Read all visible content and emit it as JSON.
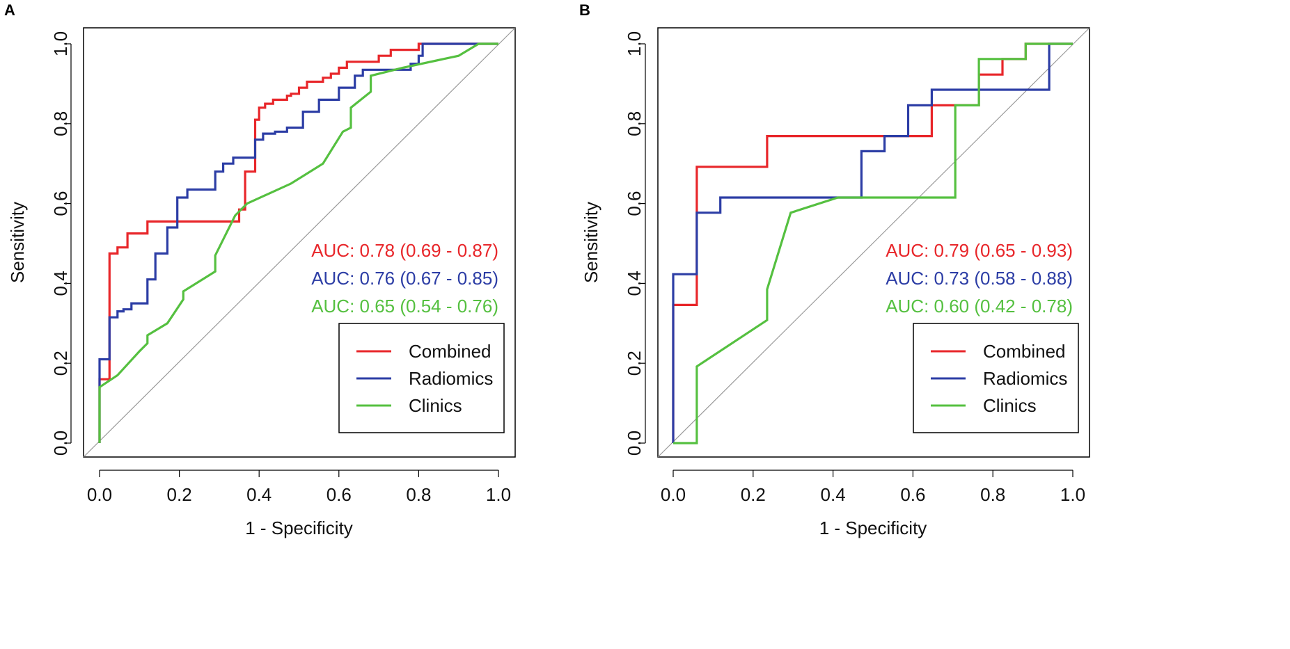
{
  "chart_data": [
    {
      "type": "line",
      "panel_label": "A",
      "xlabel": "1 - Specificity",
      "ylabel": "Sensitivity",
      "xlim": [
        0,
        1
      ],
      "ylim": [
        0,
        1
      ],
      "xticks": [
        "0.0",
        "0.2",
        "0.4",
        "0.6",
        "0.8",
        "1.0"
      ],
      "yticks": [
        "0.0",
        "0.2",
        "0.4",
        "0.6",
        "0.8",
        "1.0"
      ],
      "reference_line": "diagonal",
      "legend_position": "bottom-right",
      "series": [
        {
          "name": "Combined",
          "color": "#e8262a",
          "auc_text": "AUC: 0.78 (0.69 - 0.87)",
          "x": [
            0,
            0,
            0.025,
            0.025,
            0.045,
            0.045,
            0.07,
            0.07,
            0.12,
            0.12,
            0.35,
            0.35,
            0.365,
            0.365,
            0.39,
            0.39,
            0.4,
            0.4,
            0.415,
            0.415,
            0.435,
            0.435,
            0.47,
            0.47,
            0.48,
            0.48,
            0.5,
            0.5,
            0.52,
            0.52,
            0.56,
            0.56,
            0.58,
            0.58,
            0.6,
            0.6,
            0.62,
            0.62,
            0.7,
            0.7,
            0.73,
            0.73,
            0.8,
            0.8,
            1.0
          ],
          "y": [
            0,
            0.16,
            0.16,
            0.475,
            0.475,
            0.49,
            0.49,
            0.525,
            0.525,
            0.555,
            0.555,
            0.585,
            0.585,
            0.68,
            0.68,
            0.81,
            0.81,
            0.84,
            0.84,
            0.85,
            0.85,
            0.86,
            0.86,
            0.87,
            0.87,
            0.875,
            0.875,
            0.89,
            0.89,
            0.905,
            0.905,
            0.915,
            0.915,
            0.925,
            0.925,
            0.94,
            0.94,
            0.955,
            0.955,
            0.97,
            0.97,
            0.985,
            0.985,
            1.0,
            1.0
          ]
        },
        {
          "name": "Radiomics",
          "color": "#2c3da5",
          "auc_text": "AUC: 0.76 (0.67 - 0.85)",
          "x": [
            0,
            0,
            0.025,
            0.025,
            0.045,
            0.045,
            0.06,
            0.06,
            0.08,
            0.08,
            0.12,
            0.12,
            0.14,
            0.14,
            0.17,
            0.17,
            0.195,
            0.195,
            0.22,
            0.22,
            0.29,
            0.29,
            0.31,
            0.31,
            0.335,
            0.335,
            0.39,
            0.39,
            0.41,
            0.41,
            0.44,
            0.44,
            0.47,
            0.47,
            0.51,
            0.51,
            0.55,
            0.55,
            0.6,
            0.6,
            0.64,
            0.64,
            0.66,
            0.66,
            0.78,
            0.78,
            0.8,
            0.8,
            0.81,
            0.81,
            1.0
          ],
          "y": [
            0,
            0.21,
            0.21,
            0.315,
            0.315,
            0.33,
            0.33,
            0.335,
            0.335,
            0.35,
            0.35,
            0.41,
            0.41,
            0.475,
            0.475,
            0.54,
            0.54,
            0.615,
            0.615,
            0.635,
            0.635,
            0.68,
            0.68,
            0.7,
            0.7,
            0.715,
            0.715,
            0.76,
            0.76,
            0.775,
            0.775,
            0.78,
            0.78,
            0.79,
            0.79,
            0.83,
            0.83,
            0.86,
            0.86,
            0.89,
            0.89,
            0.92,
            0.92,
            0.935,
            0.935,
            0.95,
            0.95,
            0.97,
            0.97,
            1.0,
            1.0
          ]
        },
        {
          "name": "Clinics",
          "color": "#55c040",
          "auc_text": "AUC: 0.65 (0.54 - 0.76)",
          "x": [
            0,
            0,
            0.045,
            0.1,
            0.12,
            0.12,
            0.17,
            0.21,
            0.21,
            0.29,
            0.29,
            0.34,
            0.37,
            0.48,
            0.56,
            0.61,
            0.63,
            0.63,
            0.68,
            0.68,
            0.76,
            0.9,
            0.95,
            1.0
          ],
          "y": [
            0,
            0.14,
            0.17,
            0.23,
            0.25,
            0.27,
            0.3,
            0.36,
            0.38,
            0.43,
            0.47,
            0.57,
            0.6,
            0.65,
            0.7,
            0.78,
            0.79,
            0.84,
            0.88,
            0.92,
            0.94,
            0.97,
            1.0,
            1.0
          ]
        }
      ]
    },
    {
      "type": "line",
      "panel_label": "B",
      "xlabel": "1 - Specificity",
      "ylabel": "Sensitivity",
      "xlim": [
        0,
        1
      ],
      "ylim": [
        0,
        1
      ],
      "xticks": [
        "0.0",
        "0.2",
        "0.4",
        "0.6",
        "0.8",
        "1.0"
      ],
      "yticks": [
        "0.0",
        "0.2",
        "0.4",
        "0.6",
        "0.8",
        "1.0"
      ],
      "reference_line": "diagonal",
      "legend_position": "bottom-right",
      "series": [
        {
          "name": "Combined",
          "color": "#e8262a",
          "auc_text": "AUC: 0.79 (0.65 - 0.93)",
          "x": [
            0,
            0,
            0.059,
            0.059,
            0.235,
            0.235,
            0.588,
            0.588,
            0.647,
            0.647,
            0.706,
            0.706,
            0.765,
            0.765,
            0.824,
            0.824,
            0.882,
            0.882,
            1.0
          ],
          "y": [
            0,
            0.346,
            0.346,
            0.692,
            0.692,
            0.769,
            0.769,
            0.769,
            0.769,
            0.846,
            0.846,
            0.846,
            0.846,
            0.923,
            0.923,
            0.962,
            0.962,
            1.0,
            1.0
          ]
        },
        {
          "name": "Radiomics",
          "color": "#2c3da5",
          "auc_text": "AUC: 0.73 (0.58 - 0.88)",
          "x": [
            0,
            0,
            0.059,
            0.059,
            0.118,
            0.118,
            0.471,
            0.471,
            0.529,
            0.529,
            0.588,
            0.588,
            0.647,
            0.647,
            0.941,
            0.941,
            1.0
          ],
          "y": [
            0,
            0.423,
            0.423,
            0.577,
            0.577,
            0.615,
            0.615,
            0.731,
            0.731,
            0.769,
            0.769,
            0.846,
            0.846,
            0.885,
            0.885,
            1.0,
            1.0
          ]
        },
        {
          "name": "Clinics",
          "color": "#55c040",
          "auc_text": "AUC: 0.60 (0.42 - 0.78)",
          "x": [
            0,
            0.059,
            0.059,
            0.235,
            0.235,
            0.294,
            0.412,
            0.706,
            0.706,
            0.765,
            0.765,
            0.882,
            0.882,
            1.0
          ],
          "y": [
            0,
            0,
            0.192,
            0.308,
            0.385,
            0.577,
            0.615,
            0.615,
            0.846,
            0.846,
            0.962,
            0.962,
            1.0,
            1.0
          ]
        }
      ]
    }
  ]
}
